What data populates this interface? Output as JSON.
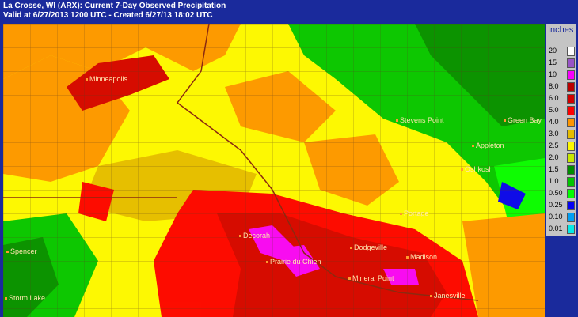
{
  "header": {
    "title": "La Crosse, WI (ARX): Current 7-Day Observed Precipitation",
    "subtitle": "Valid at 6/27/2013 1200 UTC - Created 6/27/13 18:02 UTC"
  },
  "legend": {
    "title": "Inches",
    "items": [
      {
        "label": "20",
        "color": "#fdfdfd"
      },
      {
        "label": "15",
        "color": "#9854c6"
      },
      {
        "label": "10",
        "color": "#f800fd"
      },
      {
        "label": "8.0",
        "color": "#bc0000"
      },
      {
        "label": "6.0",
        "color": "#d40000"
      },
      {
        "label": "5.0",
        "color": "#fd0000"
      },
      {
        "label": "4.0",
        "color": "#fd9500"
      },
      {
        "label": "3.0",
        "color": "#e5bc00"
      },
      {
        "label": "2.5",
        "color": "#fdf802"
      },
      {
        "label": "2.0",
        "color": "#c8e800"
      },
      {
        "label": "1.5",
        "color": "#008e00"
      },
      {
        "label": "1.0",
        "color": "#01c501"
      },
      {
        "label": "0.50",
        "color": "#02fd02"
      },
      {
        "label": "0.25",
        "color": "#0300f4"
      },
      {
        "label": "0.10",
        "color": "#019ff4"
      },
      {
        "label": "0.01",
        "color": "#04e9e7"
      }
    ]
  },
  "cities": [
    {
      "name": "Minneapolis"
    },
    {
      "name": "Stevens Point"
    },
    {
      "name": "Green Bay"
    },
    {
      "name": "Appleton"
    },
    {
      "name": "Oshkosh"
    },
    {
      "name": "Decorah"
    },
    {
      "name": "Prairie du Chien"
    },
    {
      "name": "Dodgeville"
    },
    {
      "name": "Mineral Point"
    },
    {
      "name": "Madison"
    },
    {
      "name": "Janesville"
    },
    {
      "name": "Spencer"
    },
    {
      "name": "Storm Lake"
    },
    {
      "name": "Portage"
    }
  ]
}
